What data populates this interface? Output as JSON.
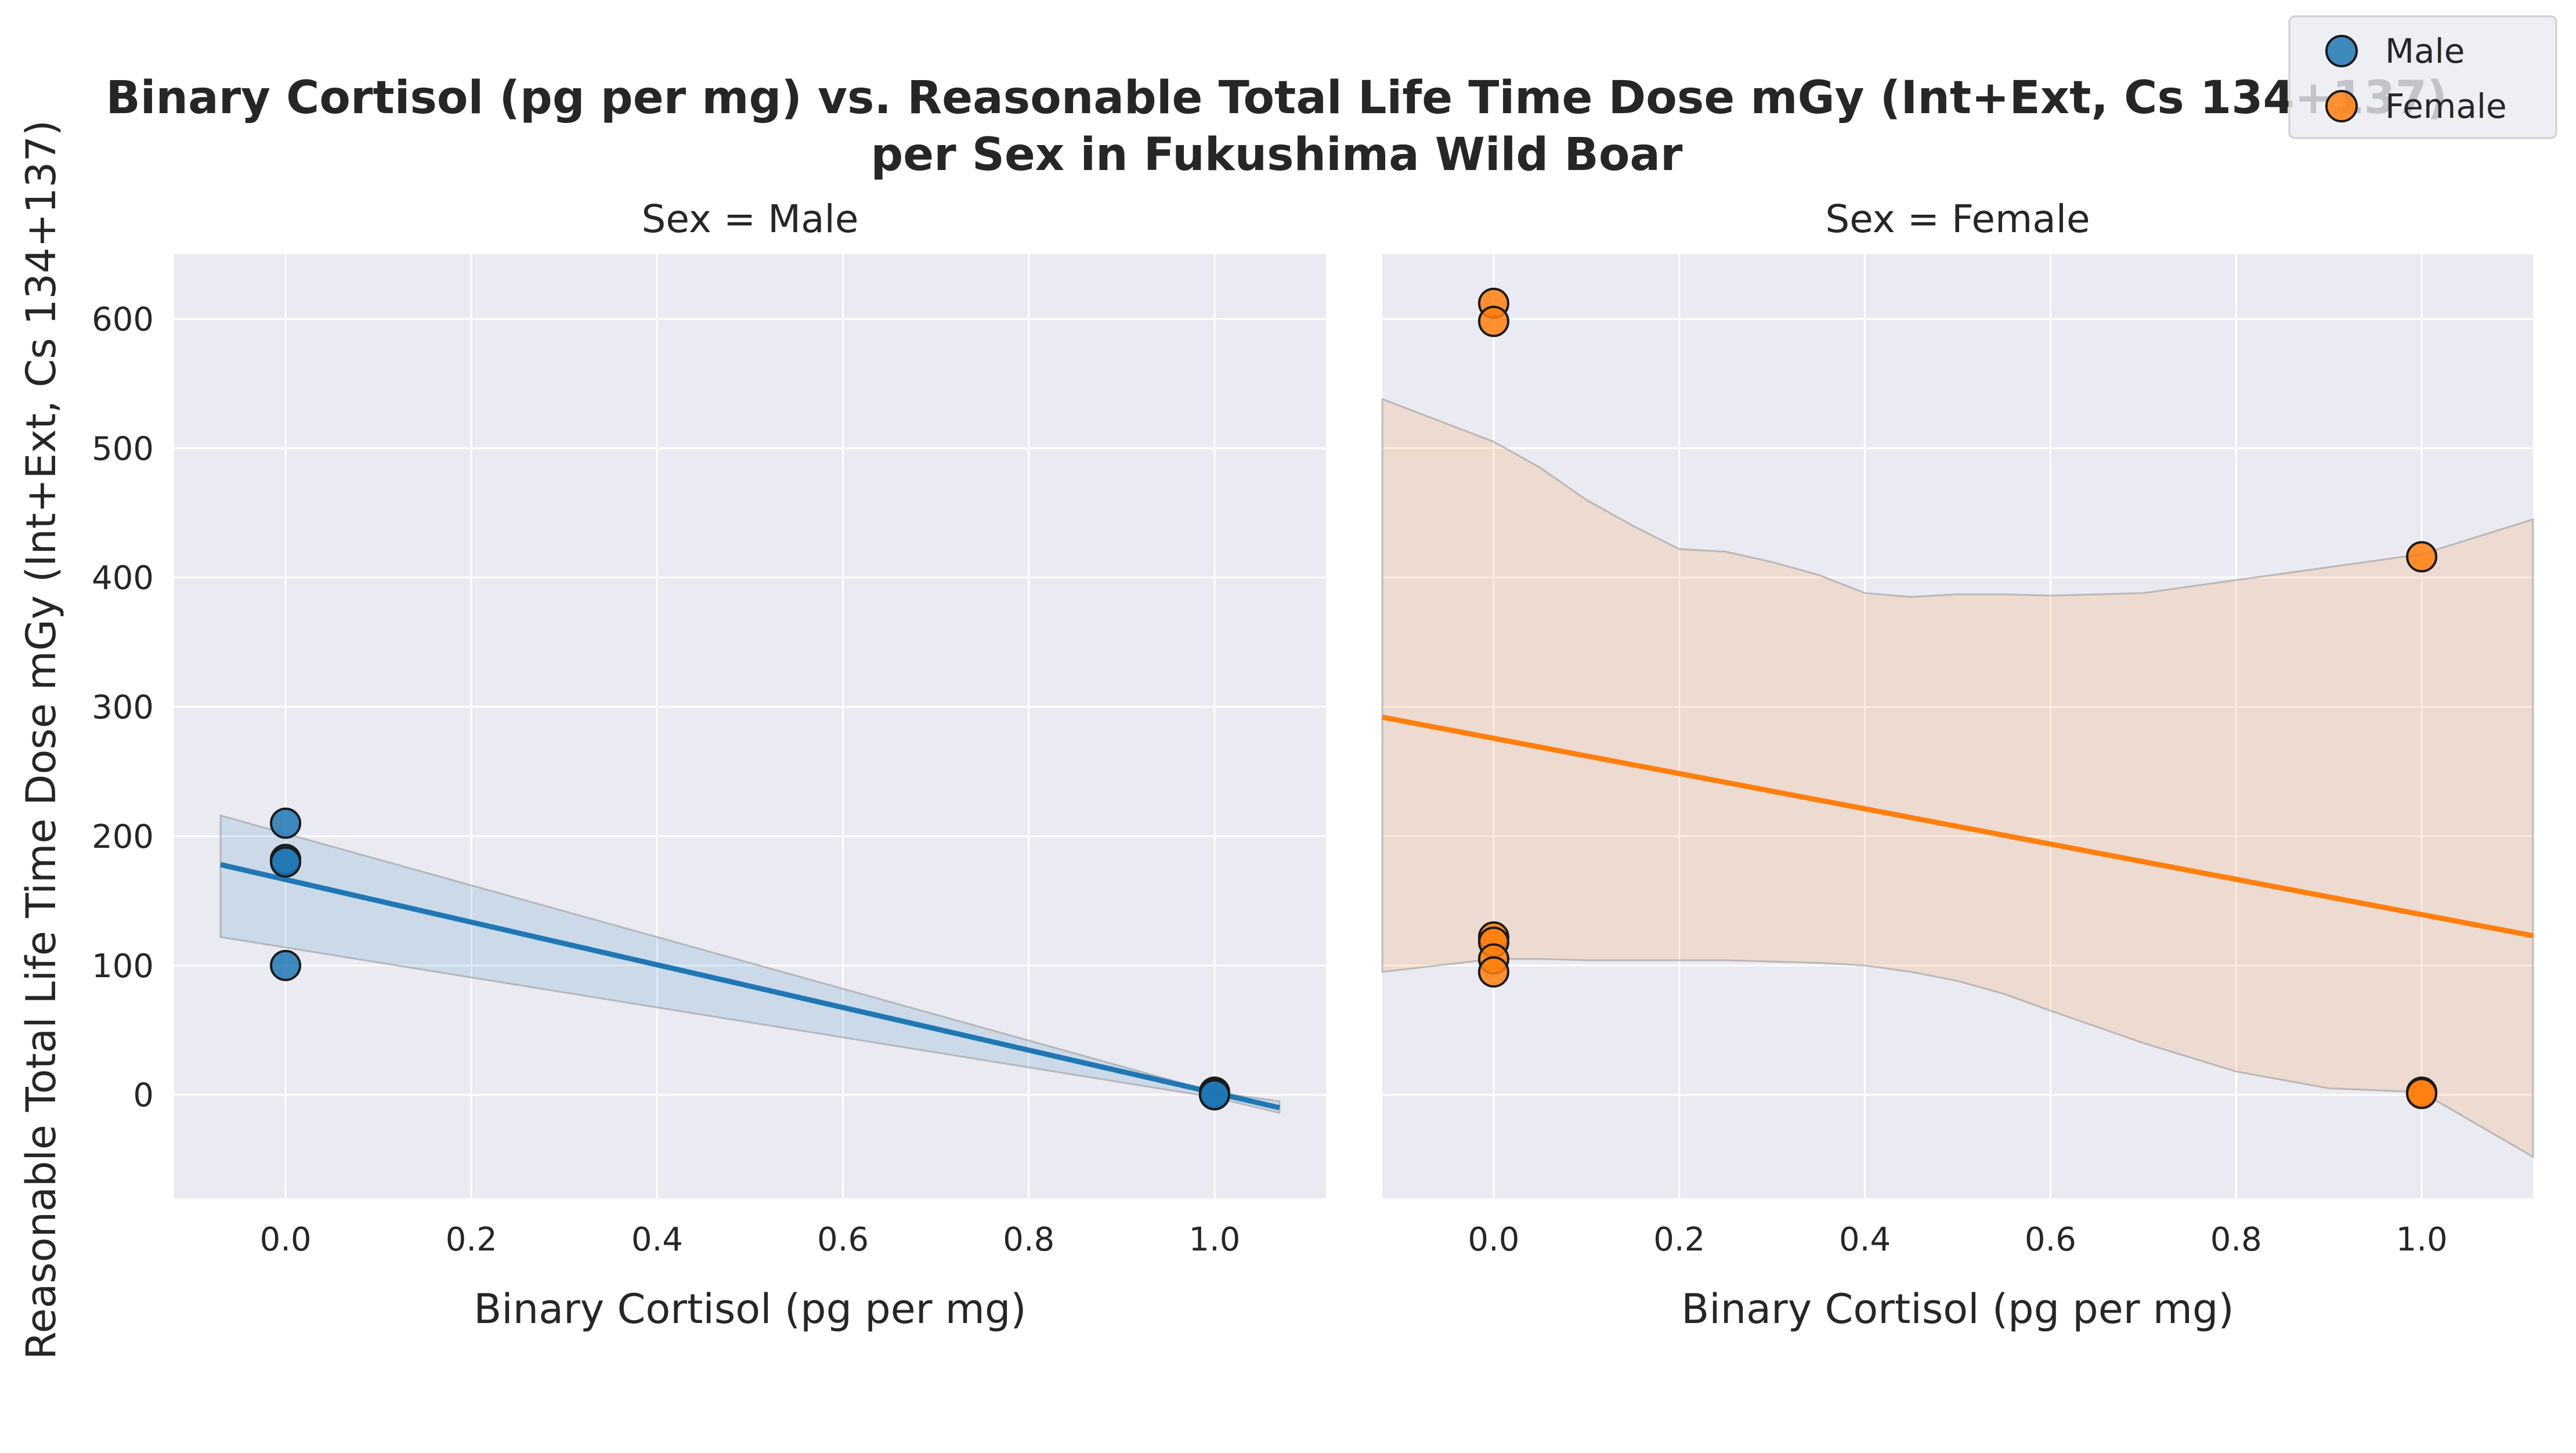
{
  "chart_data": {
    "type": "scatter",
    "title_line1": "Binary Cortisol (pg per mg) vs. Reasonable Total Life Time Dose mGy (Int+Ext, Cs 134+137)",
    "title_line2": "per Sex in Fukushima Wild Boar",
    "ylabel": "Reasonable Total Life Time Dose mGy (Int+Ext, Cs 134+137)",
    "ylim": [
      -80,
      650
    ],
    "yticks": [
      0,
      100,
      200,
      300,
      400,
      500,
      600
    ],
    "grid": true,
    "legend": {
      "position": "top-right",
      "entries": [
        {
          "label": "Male",
          "color": "#1f77b4"
        },
        {
          "label": "Female",
          "color": "#ff7f0e"
        }
      ]
    },
    "facets": [
      {
        "title": "Sex = Male",
        "xlabel": "Binary Cortisol (pg per mg)",
        "xlim": [
          -0.12,
          1.12
        ],
        "xticks": [
          "0.0",
          "0.2",
          "0.4",
          "0.6",
          "0.8",
          "1.0"
        ],
        "color": "#1f77b4",
        "points": [
          {
            "x": 0,
            "y": 210
          },
          {
            "x": 0,
            "y": 182
          },
          {
            "x": 0,
            "y": 180
          },
          {
            "x": 0,
            "y": 100
          },
          {
            "x": 1,
            "y": 2
          },
          {
            "x": 1,
            "y": 1
          },
          {
            "x": 1,
            "y": 0
          }
        ],
        "regression": {
          "x": [
            -0.07,
            1.07
          ],
          "y": [
            178,
            -10
          ]
        },
        "ci": {
          "x": [
            -0.07,
            1.0,
            1.07
          ],
          "upper": [
            216,
            2,
            -5
          ],
          "lower": [
            122,
            -2,
            -14
          ]
        }
      },
      {
        "title": "Sex = Female",
        "xlabel": "Binary Cortisol (pg per mg)",
        "xlim": [
          -0.12,
          1.12
        ],
        "xticks": [
          "0.0",
          "0.2",
          "0.4",
          "0.6",
          "0.8",
          "1.0"
        ],
        "color": "#ff7f0e",
        "points": [
          {
            "x": 0,
            "y": 612
          },
          {
            "x": 0,
            "y": 598
          },
          {
            "x": 0,
            "y": 122
          },
          {
            "x": 0,
            "y": 118
          },
          {
            "x": 0,
            "y": 105
          },
          {
            "x": 0,
            "y": 95
          },
          {
            "x": 1,
            "y": 416
          },
          {
            "x": 1,
            "y": 2
          },
          {
            "x": 1,
            "y": 1
          }
        ],
        "regression": {
          "x": [
            -0.12,
            1.12
          ],
          "y": [
            292,
            123
          ]
        },
        "ci": {
          "x": [
            -0.12,
            0.0,
            0.05,
            0.1,
            0.15,
            0.2,
            0.25,
            0.3,
            0.35,
            0.4,
            0.45,
            0.5,
            0.55,
            0.6,
            0.7,
            0.8,
            0.9,
            1.0,
            1.12
          ],
          "upper": [
            538,
            505,
            485,
            460,
            440,
            422,
            420,
            412,
            402,
            388,
            385,
            387,
            387,
            386,
            388,
            398,
            408,
            418,
            445
          ],
          "lower": [
            95,
            105,
            105,
            104,
            104,
            104,
            104,
            103,
            102,
            100,
            95,
            88,
            78,
            65,
            40,
            18,
            5,
            2,
            -48
          ]
        }
      }
    ]
  }
}
